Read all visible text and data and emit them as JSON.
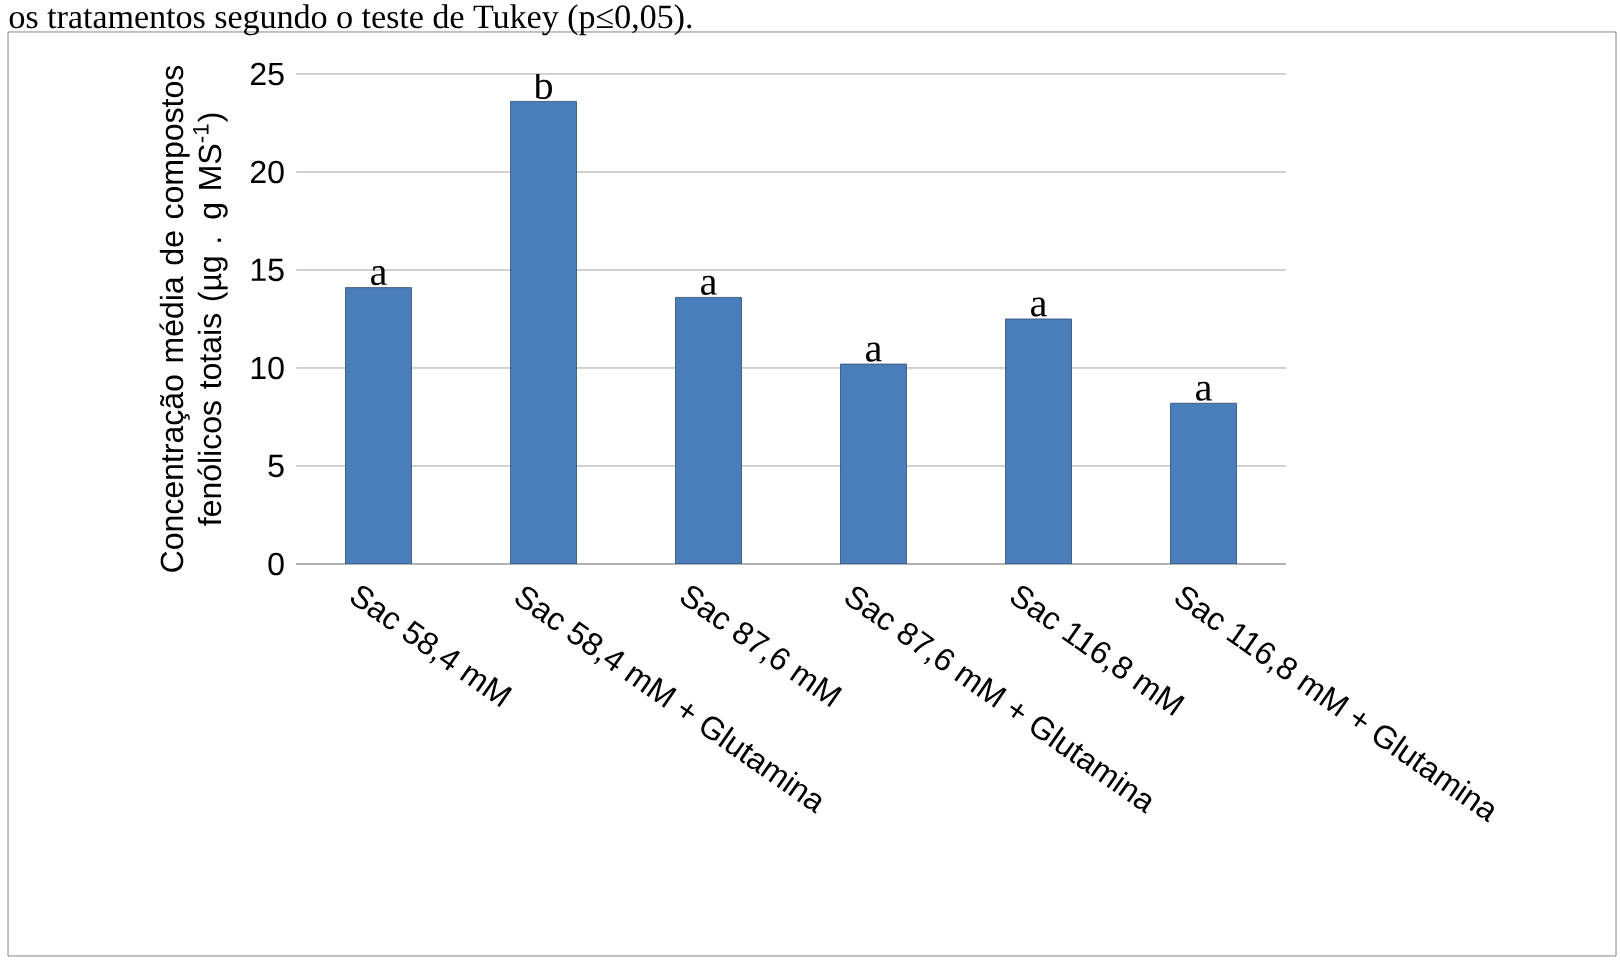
{
  "chart_data": {
    "type": "bar",
    "ylabel": "Concentração média de compostos fenólicos totais (µg . g MS$^{-1}$)",
    "categories": [
      "Sac 58,4 mM",
      "Sac 58,4 mM + Glutamina",
      "Sac 87,6 mM",
      "Sac 87,6 mM + Glutamina",
      "Sac 116,8 mM",
      "Sac 116,8 mM + Glutamina"
    ],
    "values": [
      14.1,
      23.6,
      13.6,
      10.2,
      12.5,
      8.2
    ],
    "color": "#4a7ebb",
    "ylim": [
      0,
      25
    ],
    "yticks": [
      0,
      5,
      10,
      15,
      20,
      25
    ],
    "grid": "y",
    "annotations": [
      "os tratamentos segundo o teste de Tukey (p≤0,05).",
      {
        "text": "a",
        "x": "Sac 58,4 mM",
        "y": 14.1
      },
      {
        "text": "b",
        "x": "Sac 58,4 mM + Glutamina",
        "y": 23.6
      },
      {
        "text": "a",
        "x": "Sac 87,6 mM",
        "y": 13.6
      },
      {
        "text": "a",
        "x": "Sac 87,6 mM + Glutamina",
        "y": 10.2
      },
      {
        "text": "a",
        "x": "Sac 116,8 mM",
        "y": 12.5
      },
      {
        "text": "a",
        "x": "Sac 116,8 mM + Glutamina",
        "y": 8.2
      }
    ]
  }
}
